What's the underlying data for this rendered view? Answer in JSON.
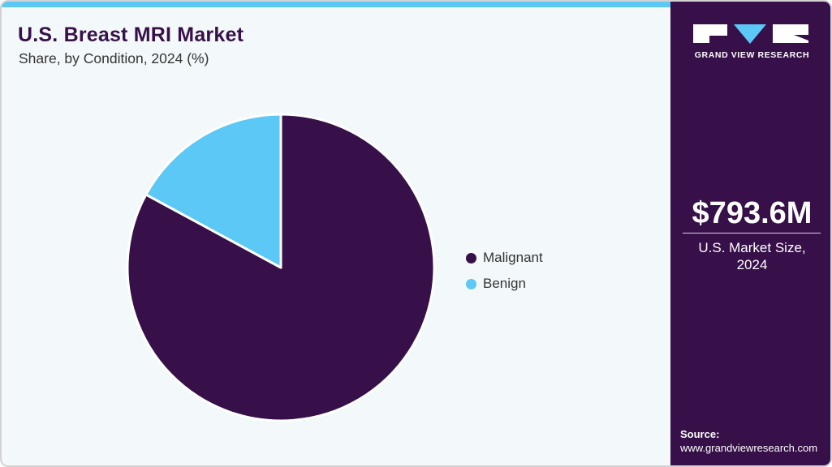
{
  "header": {
    "title": "U.S. Breast MRI Market",
    "subtitle": "Share, by Condition, 2024 (%)"
  },
  "colors": {
    "accent_bar": "#5bc8f5",
    "brand_purple": "#37104a",
    "malignant": "#37104a",
    "benign": "#5bc8f5",
    "background": "#f3f8fb"
  },
  "chart_data": {
    "type": "pie",
    "title": "U.S. Breast MRI Market",
    "subtitle": "Share, by Condition, 2024 (%)",
    "categories": [
      "Malignant",
      "Benign"
    ],
    "values": [
      82.9,
      17.1
    ],
    "colors": [
      "#37104a",
      "#5bc8f5"
    ],
    "start_angle": "12 o'clock, Malignant clockwise",
    "legend_position": "right",
    "data_labels": false
  },
  "legend": {
    "items": [
      {
        "label": "Malignant",
        "color": "#37104a"
      },
      {
        "label": "Benign",
        "color": "#5bc8f5"
      }
    ]
  },
  "side_panel": {
    "brand_name": "GRAND VIEW RESEARCH",
    "logo_icon": "gvr-logo-icon",
    "market_value": "$793.6M",
    "market_label_line1": "U.S. Market Size,",
    "market_label_line2": "2024",
    "source_label": "Source:",
    "source_url": "www.grandviewresearch.com"
  }
}
